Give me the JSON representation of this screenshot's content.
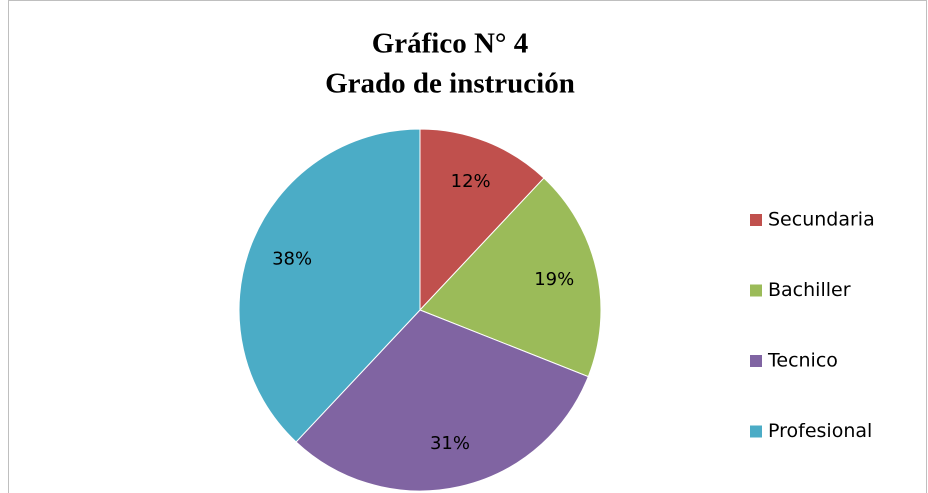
{
  "chart_data": {
    "type": "pie",
    "title": "Gráfico N° 4",
    "subtitle": "Grado de instrución",
    "categories": [
      "Secundaria",
      "Bachiller",
      "Tecnico",
      "Profesional"
    ],
    "values": [
      12,
      19,
      31,
      38
    ],
    "value_labels": [
      "12%",
      "19%",
      "31%",
      "38%"
    ],
    "colors": [
      "#c0504d",
      "#9bbb59",
      "#8064a2",
      "#4bacc6"
    ],
    "legend": "right"
  }
}
